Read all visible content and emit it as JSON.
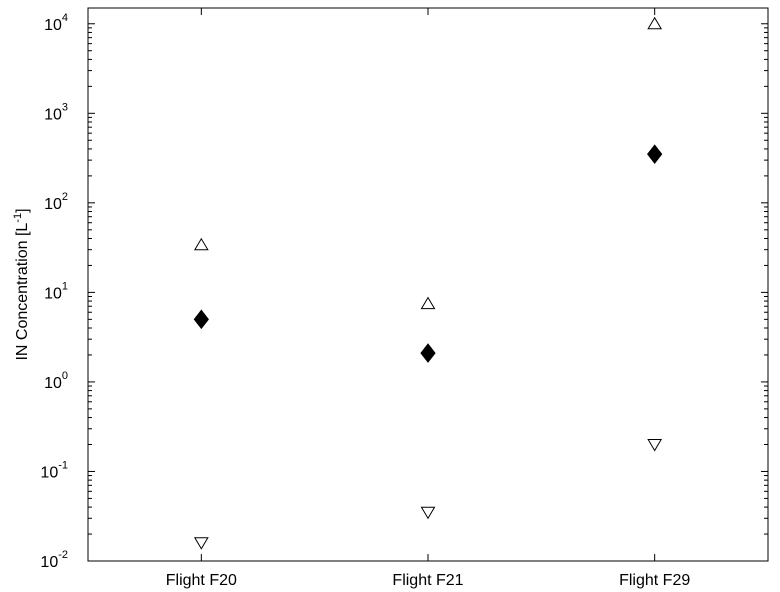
{
  "chart_data": {
    "type": "scatter",
    "title": "",
    "xlabel": "",
    "ylabel": "IN Concentration [L-1]",
    "ylabel_parts": {
      "prefix": "IN Concentration [L",
      "superscript": "-1",
      "suffix": "]"
    },
    "yscale": "log",
    "ylim": [
      0.01,
      15000
    ],
    "yticks": [
      {
        "base": "10",
        "exp": "-2"
      },
      {
        "base": "10",
        "exp": "-1"
      },
      {
        "base": "10",
        "exp": "0"
      },
      {
        "base": "10",
        "exp": "1"
      },
      {
        "base": "10",
        "exp": "2"
      },
      {
        "base": "10",
        "exp": "3"
      },
      {
        "base": "10",
        "exp": "4"
      }
    ],
    "categories": [
      "Flight F20",
      "Flight F21",
      "Flight F29"
    ],
    "series": [
      {
        "marker": "triangle-up-open",
        "values": [
          34,
          7.5,
          10000
        ]
      },
      {
        "marker": "diamond-filled",
        "values": [
          5,
          2.1,
          350
        ]
      },
      {
        "marker": "triangle-down-open",
        "values": [
          0.016,
          0.035,
          0.2
        ]
      }
    ],
    "grid": false,
    "legend": "none",
    "colors": {
      "axis": "#000000",
      "marker": "#000000",
      "background": "#ffffff"
    }
  }
}
